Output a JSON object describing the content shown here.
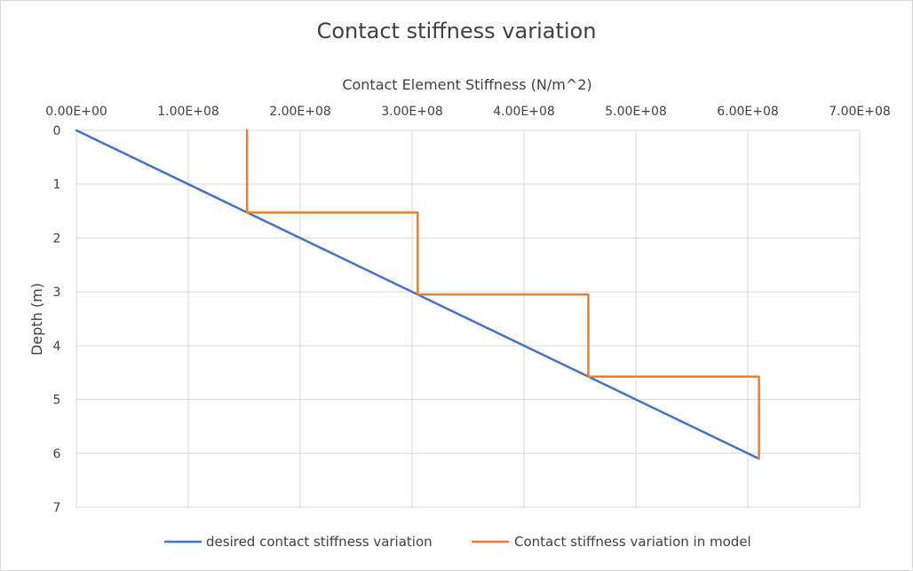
{
  "chart_data": {
    "type": "line",
    "title": "Contact stiffness variation",
    "xlabel": "Contact Element Stiffness (N/m^2)",
    "ylabel": "Depth (m)",
    "x_axis_position": "top",
    "y_axis_inverted": true,
    "xlim": [
      0,
      700000000
    ],
    "ylim": [
      0,
      7
    ],
    "x_ticks": [
      0,
      100000000,
      200000000,
      300000000,
      400000000,
      500000000,
      600000000,
      700000000
    ],
    "x_tick_labels": [
      "0.00E+00",
      "1.00E+08",
      "2.00E+08",
      "3.00E+08",
      "4.00E+08",
      "5.00E+08",
      "6.00E+08",
      "7.00E+08"
    ],
    "y_ticks": [
      0,
      1,
      2,
      3,
      4,
      5,
      6,
      7
    ],
    "y_tick_labels": [
      "0",
      "1",
      "2",
      "3",
      "4",
      "5",
      "6",
      "7"
    ],
    "grid": true,
    "legend_position": "bottom",
    "series": [
      {
        "name": "desired contact stiffness variation",
        "color": "#4472c4",
        "points": [
          {
            "x": 0,
            "y": 0
          },
          {
            "x": 610000000,
            "y": 6.1
          }
        ]
      },
      {
        "name": "Contact stiffness variation in model",
        "color": "#ed7d31",
        "points": [
          {
            "x": 152500000,
            "y": 0
          },
          {
            "x": 152500000,
            "y": 1.525
          },
          {
            "x": 305000000,
            "y": 1.525
          },
          {
            "x": 305000000,
            "y": 3.05
          },
          {
            "x": 457500000,
            "y": 3.05
          },
          {
            "x": 457500000,
            "y": 4.575
          },
          {
            "x": 610000000,
            "y": 4.575
          },
          {
            "x": 610000000,
            "y": 6.1
          }
        ]
      }
    ]
  }
}
